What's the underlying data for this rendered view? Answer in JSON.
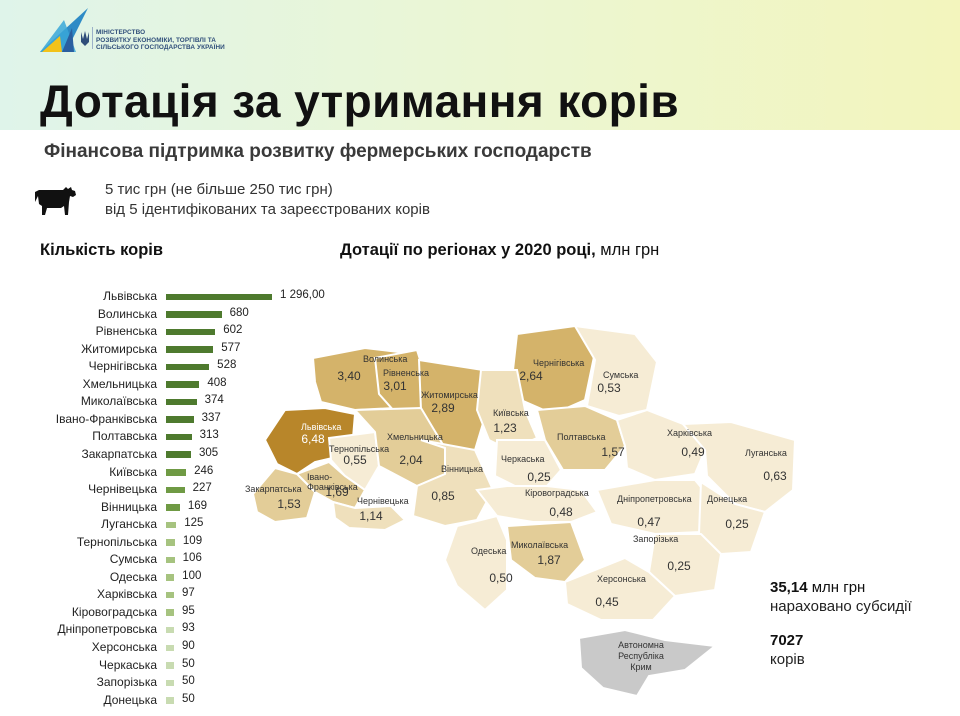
{
  "header": {
    "ministry": [
      "МІНІСТЕРСТВО",
      "РОЗВИТКУ ЕКОНОМІКИ, ТОРГІВЛІ ТА",
      "СІЛЬСЬКОГО ГОСПОДАРСТВА УКРАЇНИ"
    ],
    "title": "Дотація за утримання корів",
    "subtitle": "Фінансова підтримка розвитку фермерських господарств"
  },
  "conditions": {
    "line1": "5 тис грн (не більше 250 тис грн)",
    "line2": "від 5 ідентифікованих та зареєстрованих корів"
  },
  "colors": {
    "bar_dark": "#4e7a2e",
    "bar_mid": "#6f9a44",
    "bar_light": "#a6c37f",
    "bar_lightest": "#c8dbb1",
    "map_max": "#b8862a",
    "map_high": "#d4b36a",
    "map_mid": "#e3cd98",
    "map_low": "#efe0bc",
    "map_lowest": "#f6ecd5",
    "crimea": "#c9c9c9"
  },
  "chart_data": [
    {
      "type": "bar",
      "orientation": "horizontal",
      "title": "Кількість корів",
      "categories": [
        "Львівська",
        "Волинська",
        "Рівненська",
        "Житомирська",
        "Чернігівська",
        "Хмельницька",
        "Миколаївська",
        "Івано-Франківська",
        "Полтавська",
        "Закарпатська",
        "Київська",
        "Чернівецька",
        "Вінницька",
        "Луганська",
        "Тернопільська",
        "Сумська",
        "Одеська",
        "Харківська",
        "Кіровоградська",
        "Дніпропетровська",
        "Херсонська",
        "Черкаська",
        "Запорізька",
        "Донецька"
      ],
      "values": [
        1296,
        680,
        602,
        577,
        528,
        408,
        374,
        337,
        313,
        305,
        246,
        227,
        169,
        125,
        109,
        106,
        100,
        97,
        95,
        93,
        90,
        50,
        50,
        50
      ],
      "value_labels": [
        "1 296,00",
        "680",
        "602",
        "577",
        "528",
        "408",
        "374",
        "337",
        "313",
        "305",
        "246",
        "227",
        "169",
        "125",
        "109",
        "106",
        "100",
        "97",
        "95",
        "93",
        "90",
        "50",
        "50",
        "50"
      ],
      "xlim": [
        0,
        1296
      ]
    },
    {
      "type": "heatmap",
      "subtype": "choropleth",
      "title": "Дотації по регіонах у 2020 році,",
      "unit": "млн грн",
      "regions": [
        {
          "name": "Волинська",
          "value": "3,40"
        },
        {
          "name": "Рівненська",
          "value": "3,01"
        },
        {
          "name": "Львівська",
          "value": "6,48"
        },
        {
          "name": "Житомирська",
          "value": "2,89"
        },
        {
          "name": "Чернігівська",
          "value": "2,64"
        },
        {
          "name": "Сумська",
          "value": "0,53"
        },
        {
          "name": "Київська",
          "value": "1,23"
        },
        {
          "name": "Тернопільська",
          "value": "0,55"
        },
        {
          "name": "Хмельницька",
          "value": "2,04"
        },
        {
          "name": "Івано-Франківська",
          "value": "1,69"
        },
        {
          "name": "Закарпатська",
          "value": "1,53"
        },
        {
          "name": "Чернівецька",
          "value": "1,14"
        },
        {
          "name": "Вінницька",
          "value": "0,85"
        },
        {
          "name": "Черкаська",
          "value": "0,25"
        },
        {
          "name": "Полтавська",
          "value": "1,57"
        },
        {
          "name": "Харківська",
          "value": "0,49"
        },
        {
          "name": "Луганська",
          "value": "0,63"
        },
        {
          "name": "Кіровоградська",
          "value": "0,48"
        },
        {
          "name": "Дніпропетровська",
          "value": "0,47"
        },
        {
          "name": "Донецька",
          "value": "0,25"
        },
        {
          "name": "Запорізька",
          "value": "0,25"
        },
        {
          "name": "Одеська",
          "value": "0,50"
        },
        {
          "name": "Миколаївська",
          "value": "1,87"
        },
        {
          "name": "Херсонська",
          "value": "0,45"
        },
        {
          "name": "Автономна Республіка Крим",
          "value": ""
        }
      ]
    }
  ],
  "summary": {
    "total_value": "35,14",
    "total_unit": "млн грн",
    "total_caption": "нараховано субсидії",
    "cows_value": "7027",
    "cows_caption": "корів"
  }
}
